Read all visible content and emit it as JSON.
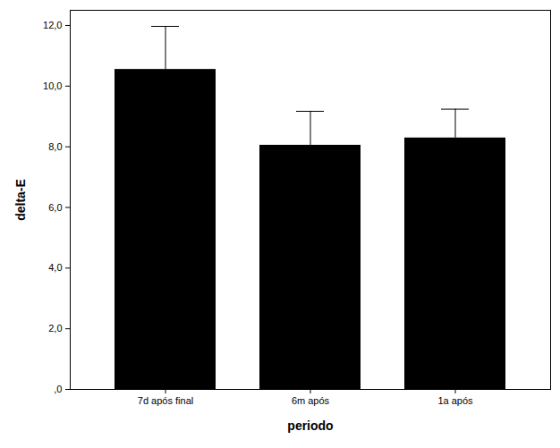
{
  "chart_data": {
    "type": "bar",
    "x_label": "periodo",
    "y_label": "delta-E",
    "categories": [
      "7d após final",
      "6m após",
      "1a após"
    ],
    "values": [
      10.55,
      8.05,
      8.29
    ],
    "error_upper": [
      11.97,
      9.17,
      9.24
    ],
    "color": "#000000",
    "ylim": [
      0,
      12.5
    ],
    "yticks": [
      {
        "value": 0,
        "label": ",0"
      },
      {
        "value": 2,
        "label": "2,0"
      },
      {
        "value": 4,
        "label": "4,0"
      },
      {
        "value": 6,
        "label": "6,0"
      },
      {
        "value": 8,
        "label": "8,0"
      },
      {
        "value": 10,
        "label": "10,0"
      },
      {
        "value": 12,
        "label": "12,0"
      }
    ],
    "grid": false
  }
}
